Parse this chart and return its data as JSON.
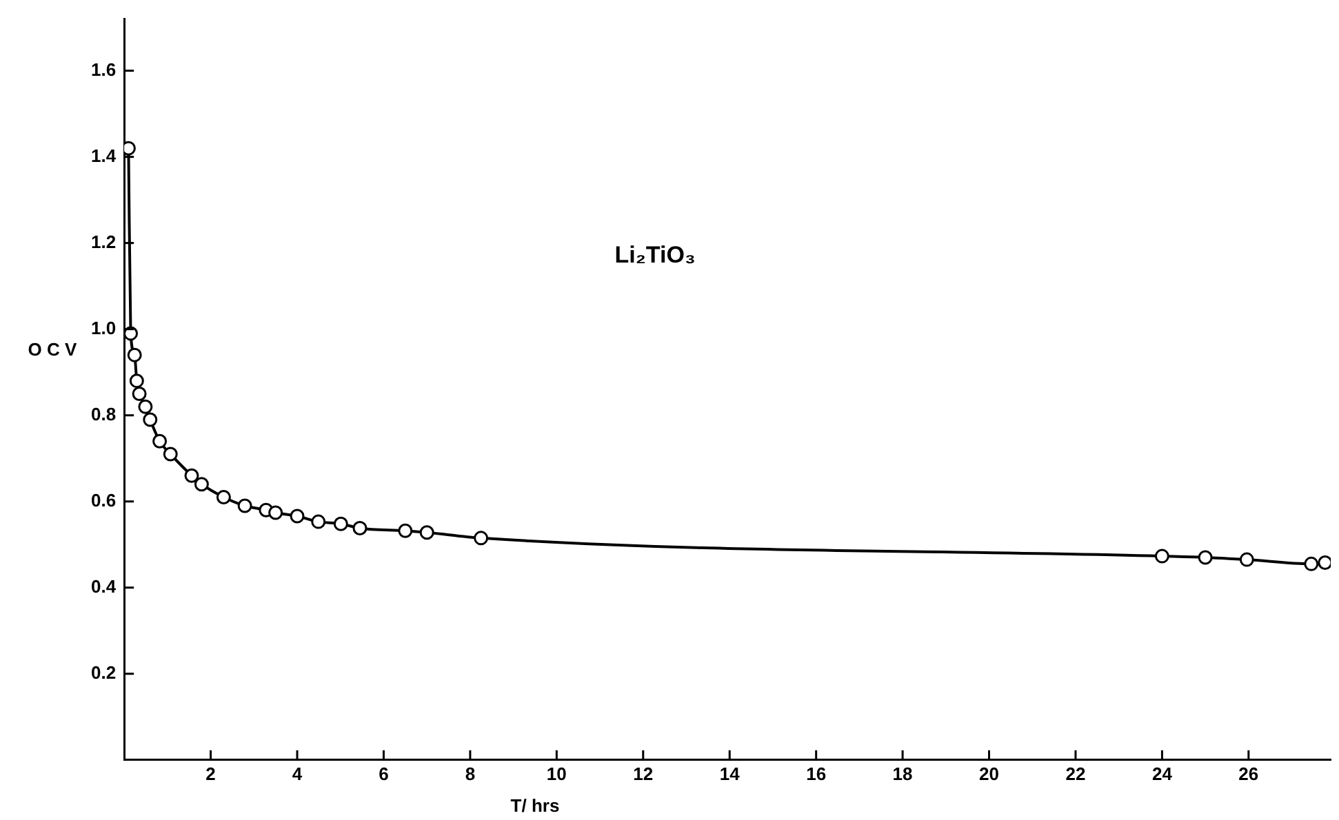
{
  "chart_data": {
    "type": "line",
    "xlabel": "T/ hrs",
    "ylabel": "O C V",
    "annotations": [
      "Li₂TiO₃"
    ],
    "series": [
      {
        "color": "#000000",
        "x": [
          0.1,
          0.15,
          0.24,
          0.29,
          0.35,
          0.49,
          0.6,
          0.82,
          1.07,
          1.56,
          1.79,
          2.3,
          2.79,
          3.28,
          3.5,
          4.0,
          4.49,
          5.01,
          5.45,
          6.5,
          7.0,
          8.25,
          24.0,
          25.0,
          25.96,
          27.45,
          27.77
        ],
        "values": [
          1.42,
          0.99,
          0.94,
          0.88,
          0.85,
          0.82,
          0.79,
          0.74,
          0.71,
          0.66,
          0.64,
          0.61,
          0.59,
          0.58,
          0.574,
          0.566,
          0.553,
          0.548,
          0.538,
          0.532,
          0.528,
          0.515,
          0.473,
          0.47,
          0.465,
          0.455,
          0.458
        ]
      }
    ],
    "xlim": [
      0,
      27.9
    ],
    "xticks": [
      2,
      4,
      6,
      8,
      10,
      12,
      14,
      16,
      18,
      20,
      22,
      24,
      26
    ],
    "ylim": [
      0,
      1.72
    ],
    "yticks": [
      0.2,
      0.4,
      0.6,
      0.8,
      {
        "value": 1.0,
        "label": "1.0"
      },
      1.2,
      1.4,
      1.6
    ],
    "grid": false,
    "legend": false,
    "marker": "circle",
    "line_style": "solid"
  }
}
